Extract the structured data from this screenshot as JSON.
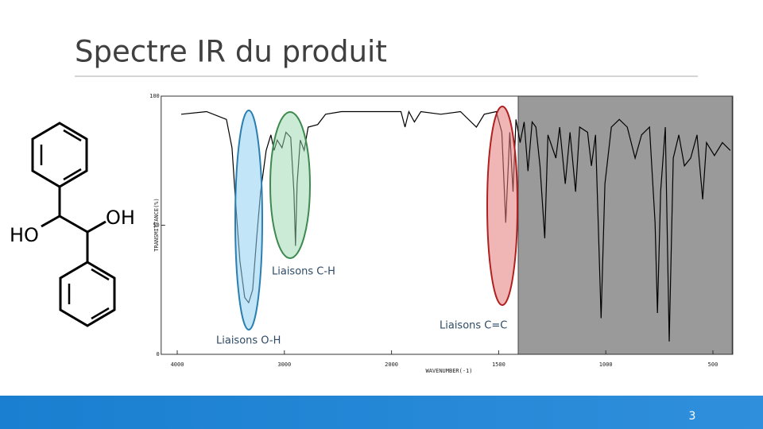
{
  "slide": {
    "title": "Spectre IR du produit",
    "page_number": "3"
  },
  "molecule": {
    "labels": [
      "HO",
      "OH"
    ]
  },
  "chart_data": {
    "type": "line",
    "x_label": "WAVENUMBER(-1)",
    "y_label": "TRANSMITTANCE(%)",
    "annotations": [
      "Liaisons C-H",
      "Liaisons O-H",
      "Liaisons C=C"
    ],
    "x": [
      3963,
      3726,
      3541,
      3489,
      3452,
      3415,
      3370,
      3333,
      3296,
      3259,
      3222,
      3170,
      3126,
      3096,
      3067,
      3022,
      2985,
      2941,
      2911,
      2896,
      2881,
      2852,
      2815,
      2778,
      2689,
      2615,
      2467,
      2170,
      1956,
      1937,
      1919,
      1893,
      1863,
      1770,
      1678,
      1604,
      1567,
      1511,
      1485,
      1467,
      1448,
      1433,
      1419,
      1400,
      1381,
      1363,
      1344,
      1326,
      1307,
      1285,
      1270,
      1233,
      1215,
      1189,
      1167,
      1141,
      1122,
      1085,
      1067,
      1048,
      1022,
      1004,
      974,
      937,
      900,
      863,
      833,
      796,
      770,
      759,
      744,
      722,
      704,
      685,
      659,
      633,
      604,
      574,
      548,
      530,
      493,
      456,
      419
    ],
    "values": [
      93,
      94,
      91,
      80,
      57,
      36,
      22,
      20,
      25,
      45,
      63,
      79,
      85,
      79,
      83,
      80,
      86,
      84,
      63,
      42,
      66,
      83,
      79,
      88,
      89,
      93,
      94,
      94,
      94,
      88,
      94,
      90,
      94,
      93,
      94,
      88,
      93,
      94,
      86,
      51,
      86,
      63,
      91,
      82,
      90,
      71,
      90,
      88,
      73,
      45,
      85,
      76,
      88,
      66,
      86,
      63,
      88,
      86,
      73,
      85,
      14,
      66,
      88,
      91,
      88,
      76,
      85,
      88,
      51,
      16,
      63,
      88,
      5,
      76,
      85,
      73,
      76,
      85,
      60,
      82,
      77,
      82,
      79
    ],
    "color": "#000000",
    "xlim": [
      4150,
      410
    ],
    "ylim": [
      0,
      100
    ],
    "xticks": [
      4000,
      3000,
      2000,
      1500,
      1000,
      500
    ],
    "yticks": [
      100,
      50,
      0
    ]
  }
}
